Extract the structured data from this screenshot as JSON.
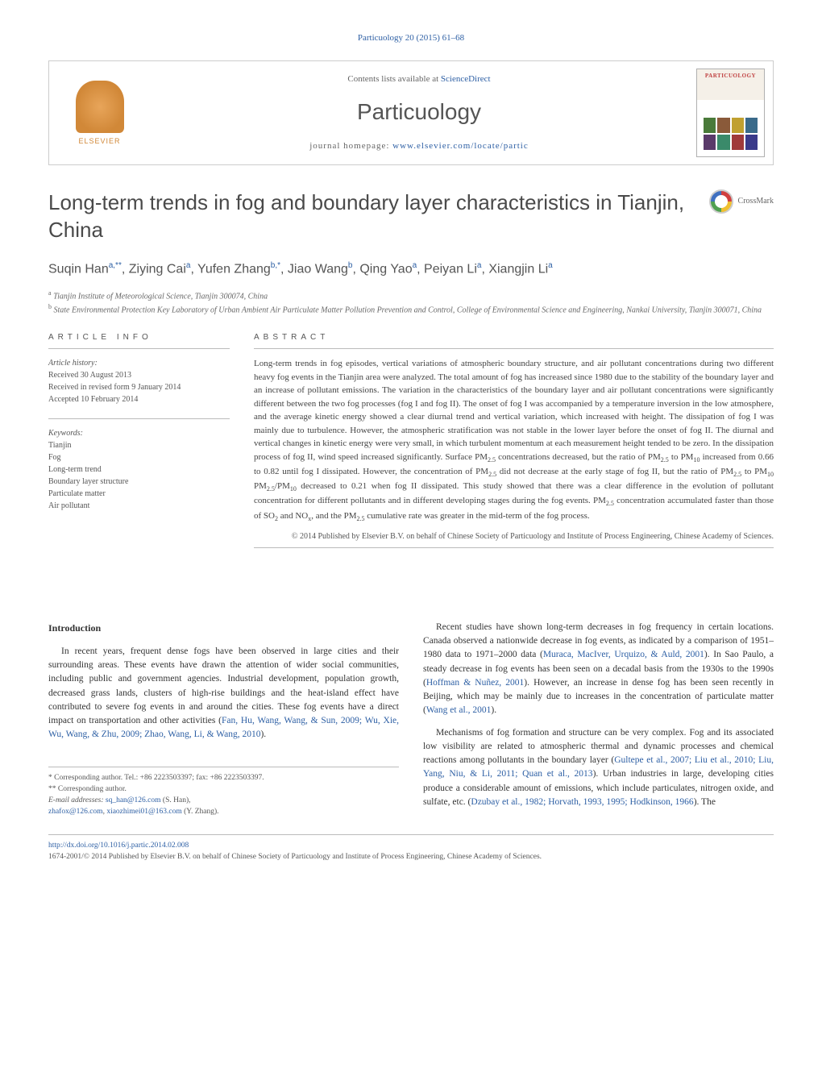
{
  "journalRef": "Particuology 20 (2015) 61–68",
  "header": {
    "contentsPrefix": "Contents lists available at ",
    "contentsLink": "ScienceDirect",
    "journalName": "Particuology",
    "homepagePrefix": "journal homepage: ",
    "homepageLink": "www.elsevier.com/locate/partic",
    "publisherLogoText": "ELSEVIER",
    "coverTitle": "PARTICUOLOGY"
  },
  "crossmarkLabel": "CrossMark",
  "title": "Long-term trends in fog and boundary layer characteristics in Tianjin, China",
  "authorsHtml": "Suqin Han<sup>a,**</sup>, Ziying Cai<sup>a</sup>, Yufen Zhang<sup>b,*</sup>, Jiao Wang<sup>b</sup>, Qing Yao<sup>a</sup>, Peiyan Li<sup>a</sup>, Xiangjin Li<sup>a</sup>",
  "affiliations": [
    "a Tianjin Institute of Meteorological Science, Tianjin 300074, China",
    "b State Environmental Protection Key Laboratory of Urban Ambient Air Particulate Matter Pollution Prevention and Control, College of Environmental Science and Engineering, Nankai University, Tianjin 300071, China"
  ],
  "articleInfo": {
    "label": "ARTICLE INFO",
    "historyTitle": "Article history:",
    "history": [
      "Received 30 August 2013",
      "Received in revised form 9 January 2014",
      "Accepted 10 February 2014"
    ],
    "keywordsTitle": "Keywords:",
    "keywords": [
      "Tianjin",
      "Fog",
      "Long-term trend",
      "Boundary layer structure",
      "Particulate matter",
      "Air pollutant"
    ]
  },
  "abstract": {
    "label": "ABSTRACT",
    "text": "Long-term trends in fog episodes, vertical variations of atmospheric boundary structure, and air pollutant concentrations during two different heavy fog events in the Tianjin area were analyzed. The total amount of fog has increased since 1980 due to the stability of the boundary layer and an increase of pollutant emissions. The variation in the characteristics of the boundary layer and air pollutant concentrations were significantly different between the two fog processes (fog I and fog II). The onset of fog I was accompanied by a temperature inversion in the low atmosphere, and the average kinetic energy showed a clear diurnal trend and vertical variation, which increased with height. The dissipation of fog I was mainly due to turbulence. However, the atmospheric stratification was not stable in the lower layer before the onset of fog II. The diurnal and vertical changes in kinetic energy were very small, in which turbulent momentum at each measurement height tended to be zero. In the dissipation process of fog II, wind speed increased significantly. Surface PM2.5 concentrations decreased, but the ratio of PM2.5 to PM10 increased from 0.66 to 0.82 until fog I dissipated. However, the concentration of PM2.5 did not decrease at the early stage of fog II, but the ratio of PM2.5 to PM10 PM2.5/PM10 decreased to 0.21 when fog II dissipated. This study showed that there was a clear difference in the evolution of pollutant concentration for different pollutants and in different developing stages during the fog events. PM2.5 concentration accumulated faster than those of SO2 and NOx, and the PM2.5 cumulative rate was greater in the mid-term of the fog process.",
    "copyright": "© 2014 Published by Elsevier B.V. on behalf of Chinese Society of Particuology and Institute of Process Engineering, Chinese Academy of Sciences."
  },
  "body": {
    "introHeading": "Introduction",
    "leftParas": [
      "In recent years, frequent dense fogs have been observed in large cities and their surrounding areas. These events have drawn the attention of wider social communities, including public and government agencies. Industrial development, population growth, decreased grass lands, clusters of high-rise buildings and the heat-island effect have contributed to severe fog events in and around the cities. These fog events have a direct impact on transportation and other activities (<span class=\"cite\">Fan, Hu, Wang, Wang, & Sun, 2009; Wu, Xie, Wu, Wang, & Zhu, 2009; Zhao, Wang, Li, & Wang, 2010</span>)."
    ],
    "rightParas": [
      "Recent studies have shown long-term decreases in fog frequency in certain locations. Canada observed a nationwide decrease in fog events, as indicated by a comparison of 1951–1980 data to 1971–2000 data (<span class=\"cite\">Muraca, MacIver, Urquizo, & Auld, 2001</span>). In Sao Paulo, a steady decrease in fog events has been seen on a decadal basis from the 1930s to the 1990s (<span class=\"cite\">Hoffman & Nuñez, 2001</span>). However, an increase in dense fog has been seen recently in Beijing, which may be mainly due to increases in the concentration of particulate matter (<span class=\"cite\">Wang et al., 2001</span>).",
      "Mechanisms of fog formation and structure can be very complex. Fog and its associated low visibility are related to atmospheric thermal and dynamic processes and chemical reactions among pollutants in the boundary layer (<span class=\"cite\">Gultepe et al., 2007; Liu et al., 2010; Liu, Yang, Niu, & Li, 2011; Quan et al., 2013</span>). Urban industries in large, developing cities produce a considerable amount of emissions, which include particulates, nitrogen oxide, and sulfate, etc. (<span class=\"cite\">Dzubay et al., 1982; Horvath, 1993, 1995; Hodkinson, 1966</span>). The"
    ]
  },
  "footnotes": {
    "corr1": "* Corresponding author. Tel.: +86 2223503397; fax: +86 2223503397.",
    "corr2": "** Corresponding author.",
    "emailLabel": "E-mail addresses: ",
    "email1": "sq_han@126.com",
    "email1Who": " (S. Han),",
    "email2a": "zhafox@126.com",
    "email2sep": ", ",
    "email2b": "xiaozhimei01@163.com",
    "email2Who": " (Y. Zhang)."
  },
  "bottom": {
    "doi": "http://dx.doi.org/10.1016/j.partic.2014.02.008",
    "issnLine": "1674-2001/© 2014 Published by Elsevier B.V. on behalf of Chinese Society of Particuology and Institute of Process Engineering, Chinese Academy of Sciences."
  },
  "colors": {
    "linkColor": "#2d5fa4",
    "textColor": "#333333",
    "mutedText": "#666666",
    "borderColor": "#bbbbbb",
    "elsevierOrange": "#d18838"
  },
  "typography": {
    "titleFontSize": 26,
    "journalNameFontSize": 28,
    "bodyFontSize": 11.5,
    "abstractFontSize": 11,
    "infoFontSize": 10,
    "footnoteFontSize": 9.5
  },
  "layout": {
    "pageWidth": 1020,
    "pageHeight": 1351,
    "infoColWidth": 225,
    "columnGap": 30
  }
}
